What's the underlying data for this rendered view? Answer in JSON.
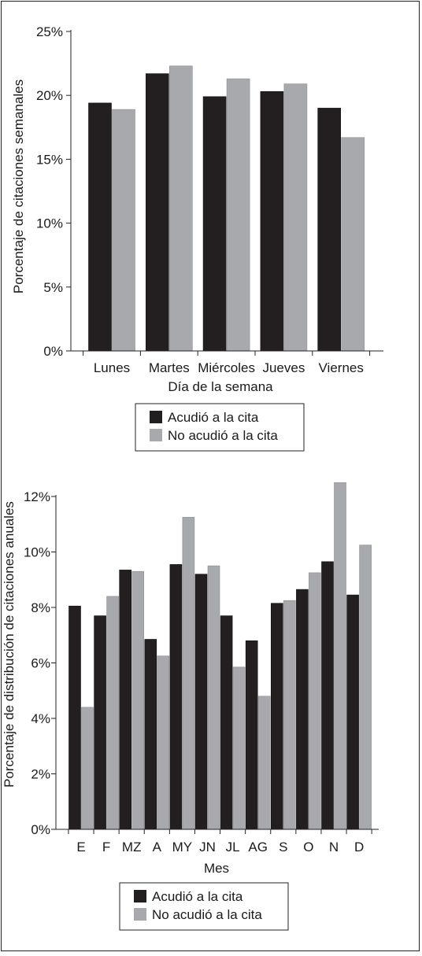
{
  "colors": {
    "attended": "#231f20",
    "missed": "#a7a9ac",
    "axis": "#222222"
  },
  "chart_data": [
    {
      "type": "bar",
      "categories": [
        "Lunes",
        "Martes",
        "Miércoles",
        "Jueves",
        "Viernes"
      ],
      "series": [
        {
          "name": "Acudió a la cita",
          "values": [
            19.4,
            21.7,
            19.9,
            20.3,
            19.0
          ]
        },
        {
          "name": "No acudió a la cita",
          "values": [
            18.9,
            22.3,
            21.3,
            20.9,
            16.7
          ]
        }
      ],
      "xlabel": "Día de la semana",
      "ylabel": "Porcentaje de citaciones semanales",
      "ylim": [
        0,
        25
      ],
      "yticks": [
        "0%",
        "5%",
        "10%",
        "15%",
        "20%",
        "25%"
      ],
      "legend": [
        "Acudió a la cita",
        "No acudió a la cita"
      ],
      "legend_position": "bottom",
      "grid": false
    },
    {
      "type": "bar",
      "categories": [
        "E",
        "F",
        "MZ",
        "A",
        "MY",
        "JN",
        "JL",
        "AG",
        "S",
        "O",
        "N",
        "D"
      ],
      "series": [
        {
          "name": "Acudió a la cita",
          "values": [
            8.05,
            7.7,
            9.35,
            6.85,
            9.55,
            9.2,
            7.7,
            6.8,
            8.15,
            8.65,
            9.65,
            8.45
          ]
        },
        {
          "name": "No acudió a la cita",
          "values": [
            4.4,
            8.4,
            9.3,
            6.25,
            11.25,
            9.5,
            5.85,
            4.8,
            8.25,
            9.25,
            12.5,
            10.25
          ]
        }
      ],
      "xlabel": "Mes",
      "ylabel": "Porcentaje de distribución de citaciones anuales",
      "ylim": [
        0,
        12
      ],
      "yticks": [
        "0%",
        "2%",
        "4%",
        "6%",
        "8%",
        "10%",
        "12%"
      ],
      "legend": [
        "Acudió a la cita",
        "No acudió a la cita"
      ],
      "legend_position": "bottom",
      "grid": false
    }
  ]
}
